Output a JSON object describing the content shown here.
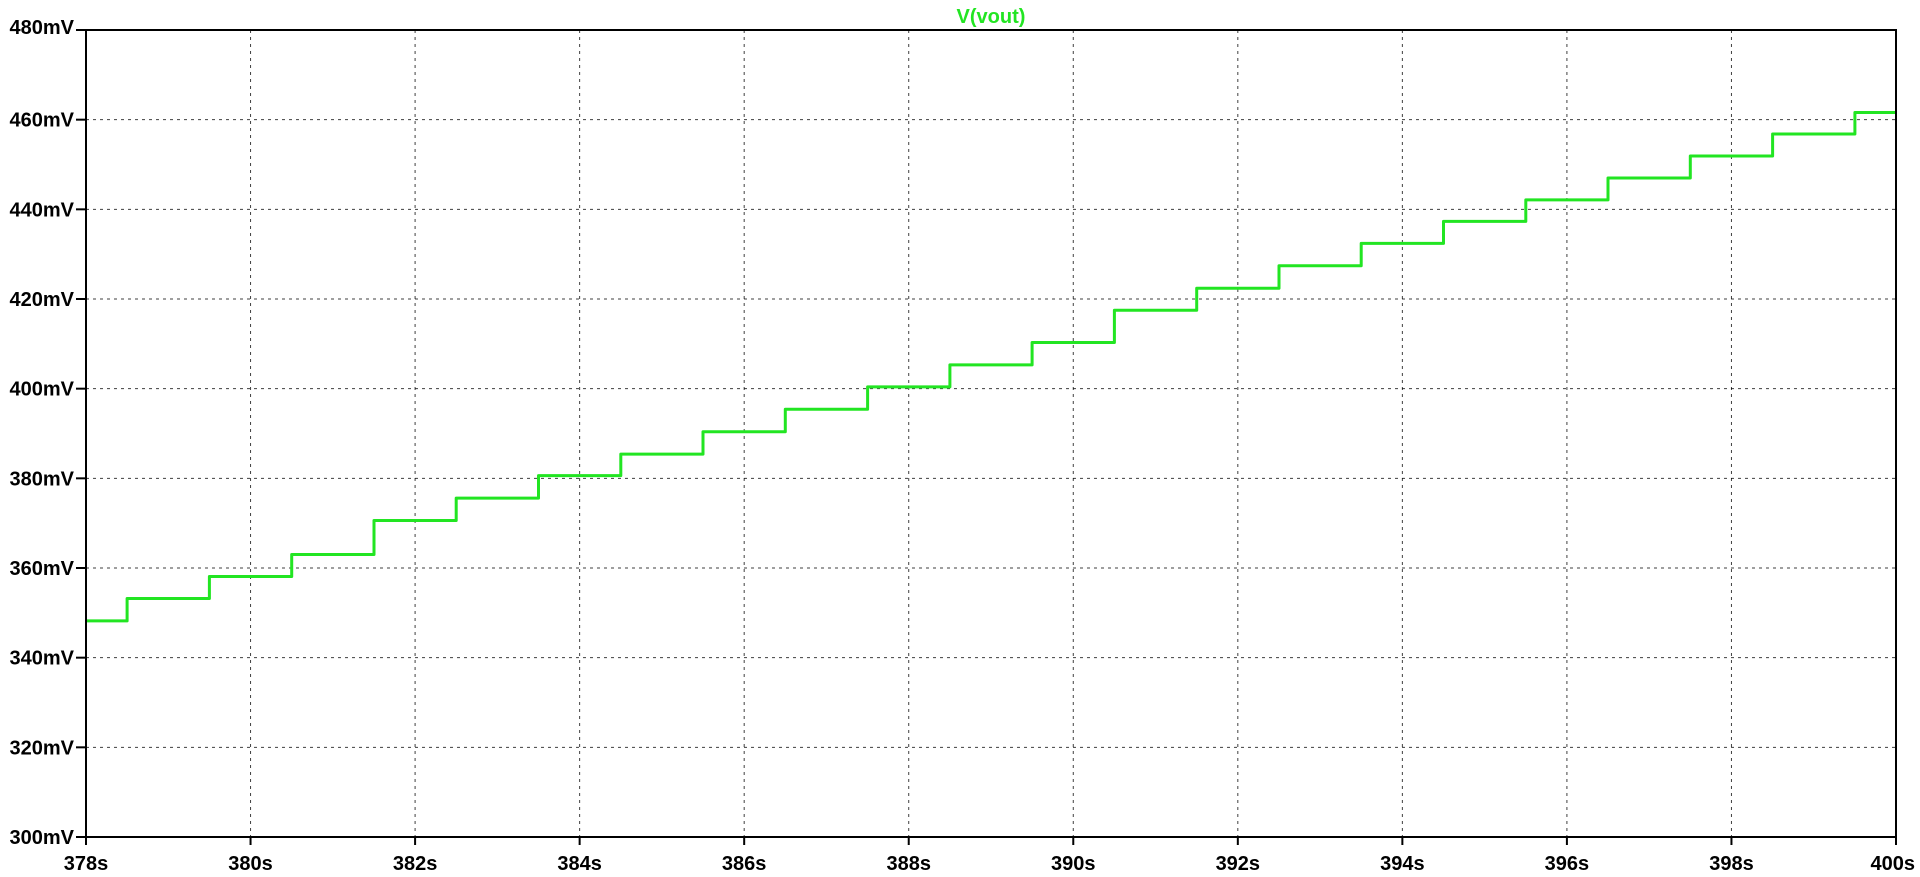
{
  "window": {
    "background": "#ffffff",
    "trace_color": "#22e522"
  },
  "chart_data": {
    "type": "line",
    "title": "V(vout)",
    "xlabel": "",
    "ylabel": "",
    "xlim": [
      378,
      400
    ],
    "ylim": [
      300,
      480
    ],
    "grid": true,
    "x_ticks": [
      378,
      380,
      382,
      384,
      386,
      388,
      390,
      392,
      394,
      396,
      398,
      400
    ],
    "x_tick_labels": [
      "378s",
      "380s",
      "382s",
      "384s",
      "386s",
      "388s",
      "390s",
      "392s",
      "394s",
      "396s",
      "398s",
      "400s"
    ],
    "y_ticks": [
      300,
      320,
      340,
      360,
      380,
      400,
      420,
      440,
      460,
      480
    ],
    "y_tick_labels": [
      "300mV",
      "320mV",
      "340mV",
      "360mV",
      "380mV",
      "400mV",
      "420mV",
      "440mV",
      "460mV",
      "480mV"
    ],
    "series": [
      {
        "name": "V(vout)",
        "color": "#22e522",
        "step": true,
        "x": [
          378.0,
          378.5,
          379.5,
          380.5,
          381.5,
          382.5,
          383.5,
          384.5,
          385.5,
          386.5,
          387.5,
          388.5,
          389.5,
          390.5,
          391.5,
          392.5,
          393.5,
          394.5,
          395.5,
          396.5,
          397.5,
          398.5,
          399.5,
          400.0
        ],
        "y": [
          348.2,
          353.2,
          358.1,
          363.0,
          370.6,
          375.6,
          380.6,
          385.4,
          390.4,
          395.4,
          400.4,
          405.3,
          410.3,
          417.5,
          422.4,
          427.4,
          432.4,
          437.3,
          442.1,
          447.0,
          451.9,
          456.8,
          461.6,
          461.6
        ]
      }
    ]
  }
}
